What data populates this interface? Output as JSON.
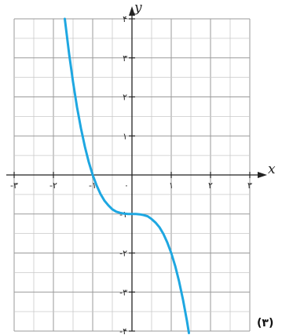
{
  "chart_data": {
    "type": "line",
    "x_axis_label": "x",
    "y_axis_label": "y",
    "xlim": [
      -3,
      3
    ],
    "ylim": [
      -4,
      4
    ],
    "grid": true,
    "x_ticks": [
      {
        "value": -3,
        "label": "-٣"
      },
      {
        "value": -2,
        "label": "-٢"
      },
      {
        "value": -1,
        "label": "-١"
      },
      {
        "value": 0,
        "label": "٠"
      },
      {
        "value": 1,
        "label": "١"
      },
      {
        "value": 2,
        "label": "٢"
      },
      {
        "value": 3,
        "label": "٣"
      }
    ],
    "y_ticks": [
      {
        "value": 4,
        "label": "۴"
      },
      {
        "value": 3,
        "label": "٣"
      },
      {
        "value": 2,
        "label": "٢"
      },
      {
        "value": 1,
        "label": "١"
      },
      {
        "value": -1,
        "label": "-١"
      },
      {
        "value": -2,
        "label": "-٢"
      },
      {
        "value": -3,
        "label": "-٣"
      },
      {
        "value": -4,
        "label": "-۴"
      }
    ],
    "series": [
      {
        "color": "#1ea7e1",
        "x": [
          -1.71,
          -1.6,
          -1.5,
          -1.4,
          -1.3,
          -1.2,
          -1.1,
          -1.0,
          -0.9,
          -0.8,
          -0.7,
          -0.6,
          -0.5,
          -0.4,
          -0.3,
          -0.2,
          -0.1,
          0.0,
          0.1,
          0.2,
          0.3,
          0.4,
          0.5,
          0.6,
          0.7,
          0.8,
          0.9,
          1.0,
          1.1,
          1.2,
          1.3,
          1.4,
          1.45
        ],
        "y": [
          4.0,
          3.1,
          2.38,
          1.74,
          1.2,
          0.73,
          0.33,
          0.0,
          -0.27,
          -0.49,
          -0.66,
          -0.78,
          -0.88,
          -0.94,
          -0.97,
          -0.99,
          -1.0,
          -1.0,
          -1.0,
          -1.01,
          -1.03,
          -1.06,
          -1.13,
          -1.22,
          -1.34,
          -1.51,
          -1.73,
          -2.0,
          -2.33,
          -2.73,
          -3.2,
          -3.74,
          -4.05
        ]
      }
    ]
  },
  "figure_label": "(٣)"
}
